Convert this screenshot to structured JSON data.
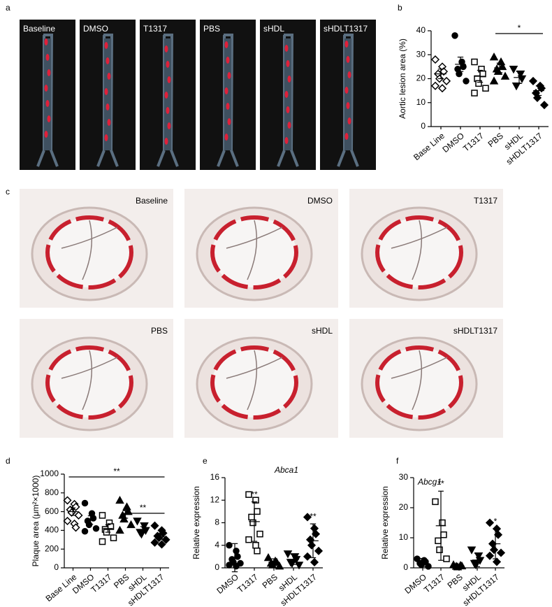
{
  "image_panels": [
    {
      "label": "a",
      "titles": [
        "Baseline",
        "DMSO",
        "T1317",
        "PBS",
        "sHDL",
        "sHDLT1317"
      ]
    },
    {
      "label": "c",
      "titles": [
        "Baseline",
        "DMSO",
        "T1317",
        "PBS",
        "sHDL",
        "sHDLT1317"
      ]
    }
  ],
  "chart_data": [
    {
      "type": "dot",
      "panel": "b",
      "ylabel": "Aortic lesion area (%)",
      "categories": [
        "Base Line",
        "DMSO",
        "T1317",
        "PBS",
        "sHDL",
        "sHDLT1317"
      ],
      "ylim": [
        0,
        40
      ],
      "yticks": [
        0,
        10,
        20,
        30,
        40
      ],
      "groups": [
        {
          "marker": "diamond",
          "filled": false,
          "points": [
            28,
            25,
            23,
            22,
            20,
            19,
            17,
            16
          ],
          "mean": 22,
          "error": 2
        },
        {
          "marker": "circle",
          "filled": true,
          "points": [
            38,
            27,
            25,
            24,
            22,
            19
          ],
          "mean": 26,
          "error": 3
        },
        {
          "marker": "square",
          "filled": false,
          "points": [
            27,
            24,
            22,
            20,
            18,
            16,
            14
          ],
          "mean": 21,
          "error": 2.5
        },
        {
          "marker": "triangle",
          "filled": true,
          "points": [
            29,
            27,
            25,
            24,
            23,
            21,
            19
          ],
          "mean": 24.5,
          "error": 2
        },
        {
          "marker": "triangle-down",
          "filled": true,
          "points": [
            24,
            22,
            20,
            17
          ],
          "mean": 20.5,
          "error": 2.5
        },
        {
          "marker": "diamond",
          "filled": true,
          "points": [
            19,
            17,
            16,
            14,
            12,
            9
          ],
          "mean": 15,
          "error": 2
        }
      ],
      "comparisons": [
        {
          "from": 3,
          "to": 5,
          "label": "*"
        }
      ]
    },
    {
      "type": "dot",
      "panel": "d",
      "ylabel": "Plaque area (μm²×1000)",
      "categories": [
        "Base Line",
        "DMSO",
        "T1317",
        "PBS",
        "sHDL",
        "sHDLT1317"
      ],
      "ylim": [
        0,
        1000
      ],
      "yticks": [
        0,
        200,
        400,
        600,
        800,
        1000
      ],
      "groups": [
        {
          "marker": "diamond",
          "filled": false,
          "points": [
            720,
            680,
            650,
            620,
            590,
            560,
            500,
            470,
            430
          ],
          "mean": 600,
          "error": 40
        },
        {
          "marker": "circle",
          "filled": true,
          "points": [
            690,
            580,
            530,
            500,
            460,
            420,
            390
          ],
          "mean": 510,
          "error": 45
        },
        {
          "marker": "square",
          "filled": false,
          "points": [
            560,
            480,
            440,
            410,
            380,
            320,
            280
          ],
          "mean": 420,
          "error": 40
        },
        {
          "marker": "triangle",
          "filled": true,
          "points": [
            720,
            650,
            600,
            560,
            520,
            460,
            400
          ],
          "mean": 570,
          "error": 40
        },
        {
          "marker": "triangle-down",
          "filled": true,
          "points": [
            500,
            450,
            400,
            380,
            360
          ],
          "mean": 410,
          "error": 30
        },
        {
          "marker": "diamond",
          "filled": true,
          "points": [
            450,
            400,
            370,
            340,
            320,
            300,
            270,
            250
          ],
          "mean": 330,
          "error": 25
        }
      ],
      "comparisons": [
        {
          "from": 0,
          "to": 5,
          "label": "**"
        },
        {
          "from": 3,
          "to": 5,
          "label": "**"
        }
      ]
    },
    {
      "type": "dot",
      "panel": "e",
      "title": "Abca1",
      "ylabel": "Relative expression",
      "categories": [
        "DMSO",
        "T1317",
        "PBS",
        "sHDL",
        "sHDLT1317"
      ],
      "ylim": [
        0,
        16
      ],
      "yticks": [
        0,
        4,
        8,
        12,
        16
      ],
      "groups": [
        {
          "marker": "circle",
          "filled": true,
          "points": [
            4,
            3,
            2,
            1.5,
            1,
            0.8,
            0.5,
            0.3
          ],
          "mean": 1.8,
          "error": 2.5
        },
        {
          "marker": "square",
          "filled": false,
          "points": [
            13,
            12,
            10,
            9,
            8,
            6,
            5,
            4,
            3
          ],
          "mean": 8.2,
          "error": 3.5,
          "annotation": "**"
        },
        {
          "marker": "triangle",
          "filled": true,
          "points": [
            1.8,
            1.2,
            1,
            0.8,
            0.5,
            0.3
          ],
          "mean": 1,
          "error": 0.6
        },
        {
          "marker": "triangle-down",
          "filled": true,
          "points": [
            2.5,
            2,
            1.5,
            1,
            0.8,
            0.5
          ],
          "mean": 1.5,
          "error": 0.9
        },
        {
          "marker": "diamond",
          "filled": true,
          "points": [
            9,
            7,
            6,
            5,
            4,
            3,
            2,
            1
          ],
          "mean": 4.8,
          "error": 3,
          "annotation": "**"
        }
      ]
    },
    {
      "type": "dot",
      "panel": "f",
      "title": "Abcg1",
      "ylabel": "Relative expression",
      "categories": [
        "DMSO",
        "T1317",
        "PBS",
        "sHDL",
        "sHDLT1317"
      ],
      "ylim": [
        0,
        30
      ],
      "yticks": [
        0,
        10,
        20,
        30
      ],
      "groups": [
        {
          "marker": "circle",
          "filled": true,
          "points": [
            3,
            2.5,
            2,
            1.5,
            1,
            0.5
          ],
          "mean": 1.8,
          "error": 1.3
        },
        {
          "marker": "square",
          "filled": false,
          "points": [
            22,
            15,
            11,
            9,
            6,
            3
          ],
          "mean": 14,
          "error": 11.5,
          "annotation": "**"
        },
        {
          "marker": "triangle",
          "filled": true,
          "points": [
            1,
            0.8,
            0.6,
            0.5,
            0.3
          ],
          "mean": 0.7,
          "error": 0.3
        },
        {
          "marker": "triangle-down",
          "filled": true,
          "points": [
            6,
            4,
            2.5,
            1.5,
            1
          ],
          "mean": 2.6,
          "error": 2.2
        },
        {
          "marker": "diamond",
          "filled": true,
          "points": [
            15,
            13,
            11,
            8,
            6,
            5,
            4,
            2
          ],
          "mean": 8,
          "error": 5,
          "annotation": "*"
        }
      ]
    }
  ]
}
